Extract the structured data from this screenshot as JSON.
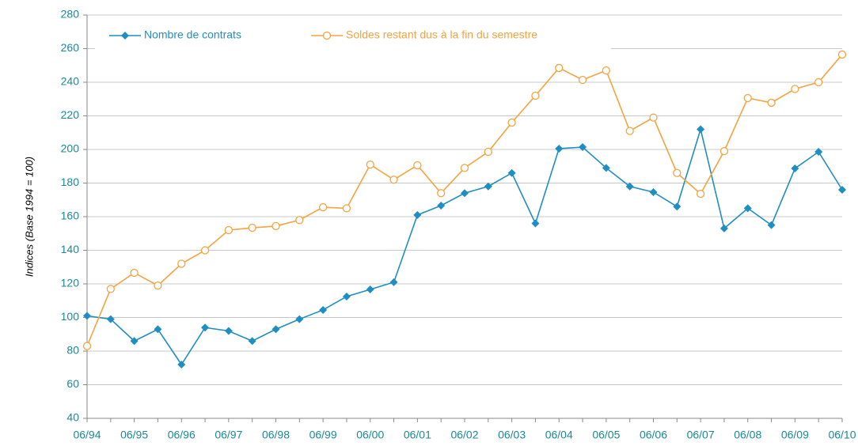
{
  "chart_data": {
    "type": "line",
    "y_label": "Indices (Base 1994 = 100)",
    "categories": [
      "06/94",
      null,
      "06/95",
      null,
      "06/96",
      null,
      "06/97",
      null,
      "06/98",
      null,
      "06/99",
      null,
      "06/00",
      null,
      "06/01",
      null,
      "06/02",
      null,
      "06/03",
      null,
      "06/04",
      null,
      "06/05",
      null,
      "06/06",
      null,
      "06/07",
      null,
      "06/08",
      null,
      "06/09",
      null,
      "06/10"
    ],
    "series": [
      {
        "name": "Nombre de contrats",
        "color": "#1f8ec2",
        "marker": "diamond",
        "values": [
          101,
          99,
          86,
          93,
          72,
          94,
          92,
          86,
          93,
          99,
          104.5,
          112.5,
          116.7,
          121,
          161,
          166.6,
          174,
          178,
          186,
          156,
          200.5,
          201.4,
          189,
          178,
          174.6,
          166,
          212,
          153,
          165,
          155,
          188.7,
          198.6,
          176
        ]
      },
      {
        "name": "Soldes restant dus à la fin du semestre",
        "color": "#f4a340",
        "marker": "circle",
        "values": [
          83,
          117,
          126.6,
          119,
          132,
          140,
          152,
          153.4,
          154.4,
          158,
          165.6,
          165,
          191,
          182,
          190.6,
          174,
          189,
          198.6,
          216,
          232,
          248.5,
          241.4,
          247,
          211,
          219,
          186,
          173.6,
          199,
          230.6,
          227.8,
          236,
          240,
          256.5
        ]
      }
    ],
    "ylim": [
      40,
      280
    ],
    "yticks": [
      40,
      60,
      80,
      100,
      120,
      140,
      160,
      180,
      200,
      220,
      240,
      260,
      280
    ],
    "grid": true
  }
}
